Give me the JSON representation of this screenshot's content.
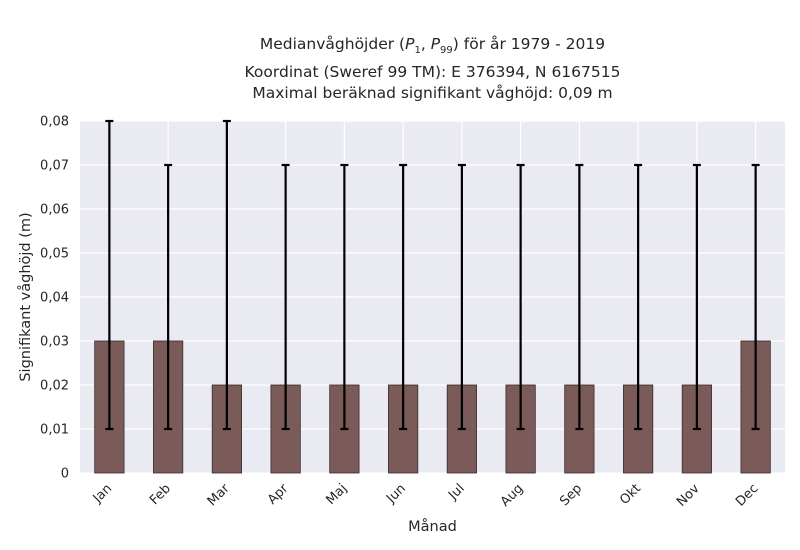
{
  "chart_data": {
    "type": "bar",
    "title_parts": {
      "pre": "Medianvåghöjder (",
      "p1_base": "P",
      "p1_sub": "1",
      "sep": ", ",
      "p99_base": "P",
      "p99_sub": "99",
      "post": ") för år 1979 - 2019"
    },
    "subtitle_lines": [
      "Koordinat (Sweref 99 TM): E 376394, N 6167515",
      "Maximal beräknad signifikant våghöjd: 0,09 m"
    ],
    "xlabel": "Månad",
    "ylabel": "Signifikant våghöjd (m)",
    "categories": [
      "Jan",
      "Feb",
      "Mar",
      "Apr",
      "Maj",
      "Jun",
      "Jul",
      "Aug",
      "Sep",
      "Okt",
      "Nov",
      "Dec"
    ],
    "values": [
      0.03,
      0.03,
      0.02,
      0.02,
      0.02,
      0.02,
      0.02,
      0.02,
      0.02,
      0.02,
      0.02,
      0.03
    ],
    "error_low": [
      0.01,
      0.01,
      0.01,
      0.01,
      0.01,
      0.01,
      0.01,
      0.01,
      0.01,
      0.01,
      0.01,
      0.01
    ],
    "error_high": [
      0.08,
      0.07,
      0.08,
      0.07,
      0.07,
      0.07,
      0.07,
      0.07,
      0.07,
      0.07,
      0.07,
      0.07
    ],
    "ylim": [
      0,
      0.08
    ],
    "yticks": [
      "0",
      "0,01",
      "0,02",
      "0,03",
      "0,04",
      "0,05",
      "0,06",
      "0,07",
      "0,08"
    ],
    "grid": true,
    "colors": {
      "bar": "#7b5a5a",
      "bar_edge": "#3a2a2a",
      "errorbar": "#000000",
      "plot_bg": "#eaeaf2",
      "grid": "#ffffff"
    }
  }
}
